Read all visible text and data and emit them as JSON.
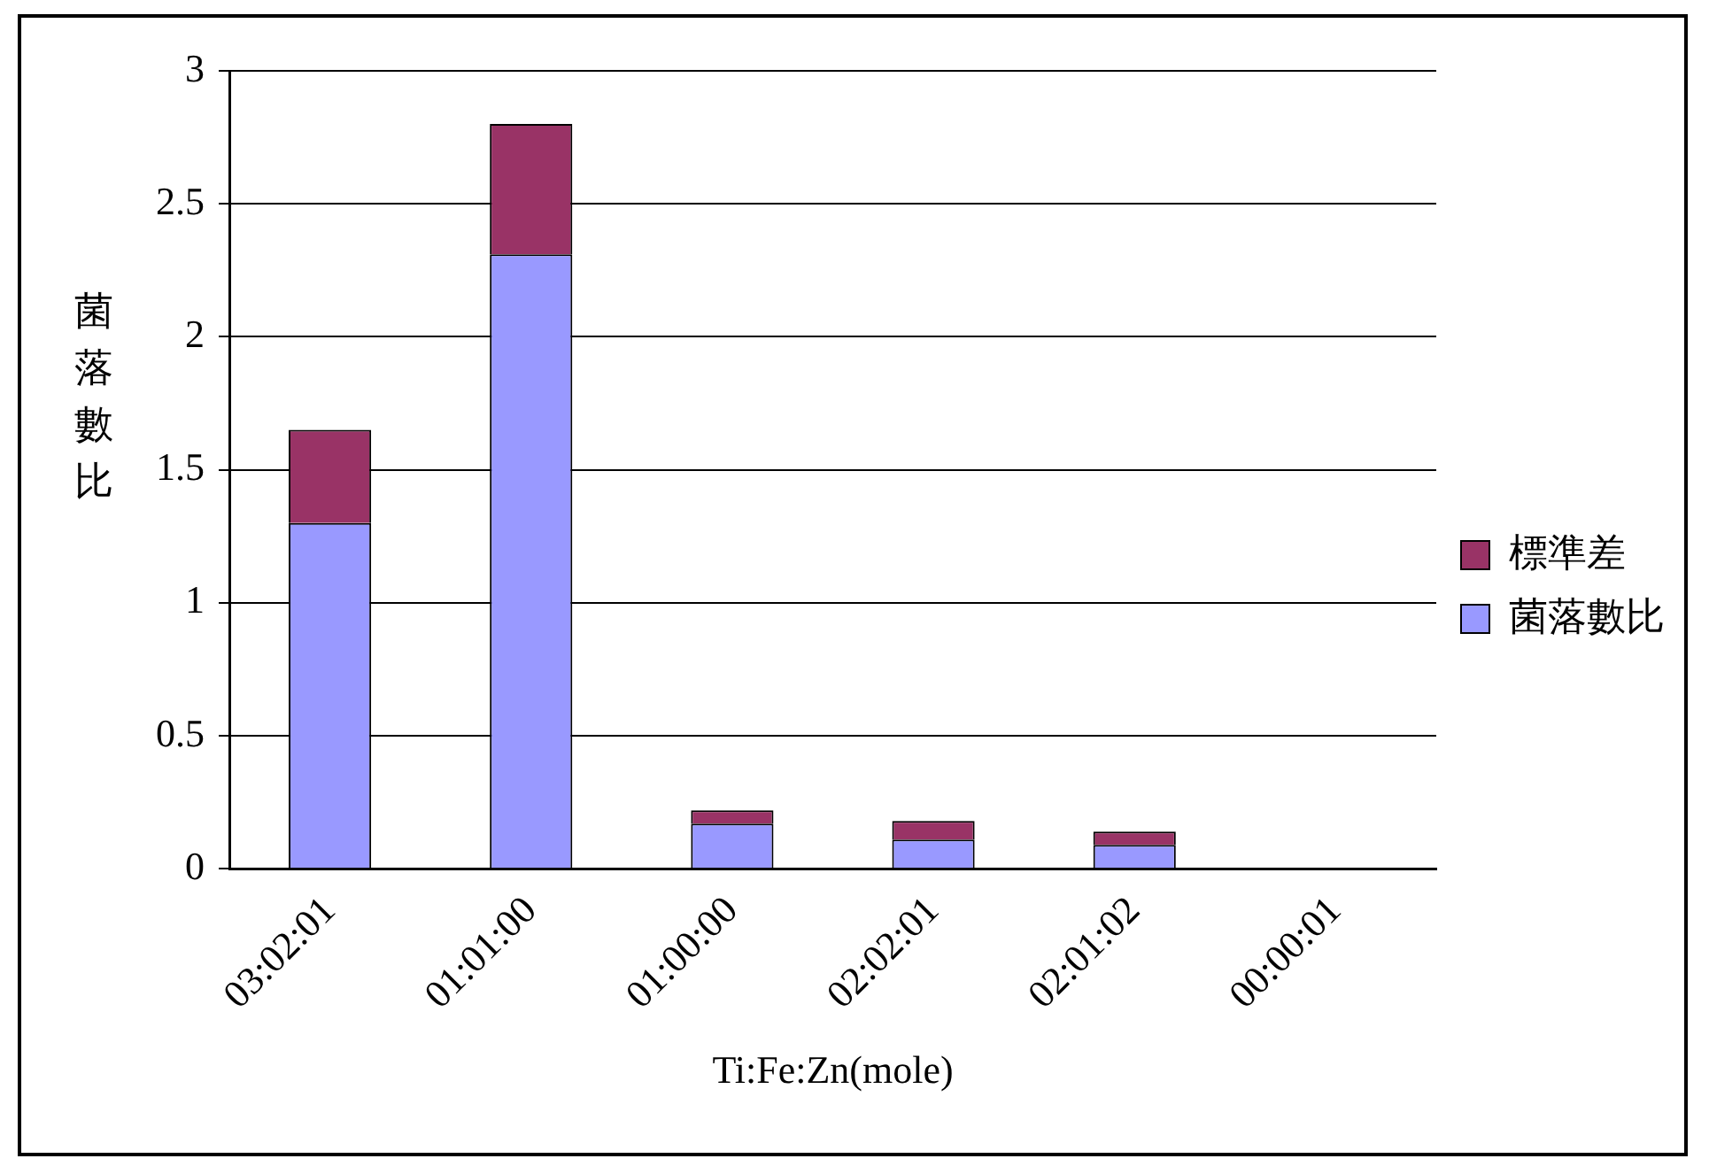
{
  "chart_data": {
    "type": "bar",
    "stacked": true,
    "xlabel": "Ti:Fe:Zn(mole)",
    "ylabel": "菌落數比",
    "categories": [
      "03:02:01",
      "01:01:00",
      "01:00:00",
      "02:02:01",
      "02:01:02",
      "00:00:01"
    ],
    "series": [
      {
        "name": "菌落數比",
        "color": "#9999ff",
        "values": [
          1.3,
          2.31,
          0.17,
          0.11,
          0.09,
          0
        ]
      },
      {
        "name": "標準差",
        "color": "#993366",
        "values": [
          0.35,
          0.49,
          0.05,
          0.07,
          0.05,
          0
        ]
      }
    ],
    "ylim": [
      0,
      3
    ],
    "yticks": [
      0,
      0.5,
      1,
      1.5,
      2,
      2.5,
      3
    ],
    "grid": "y",
    "legend": "right"
  }
}
